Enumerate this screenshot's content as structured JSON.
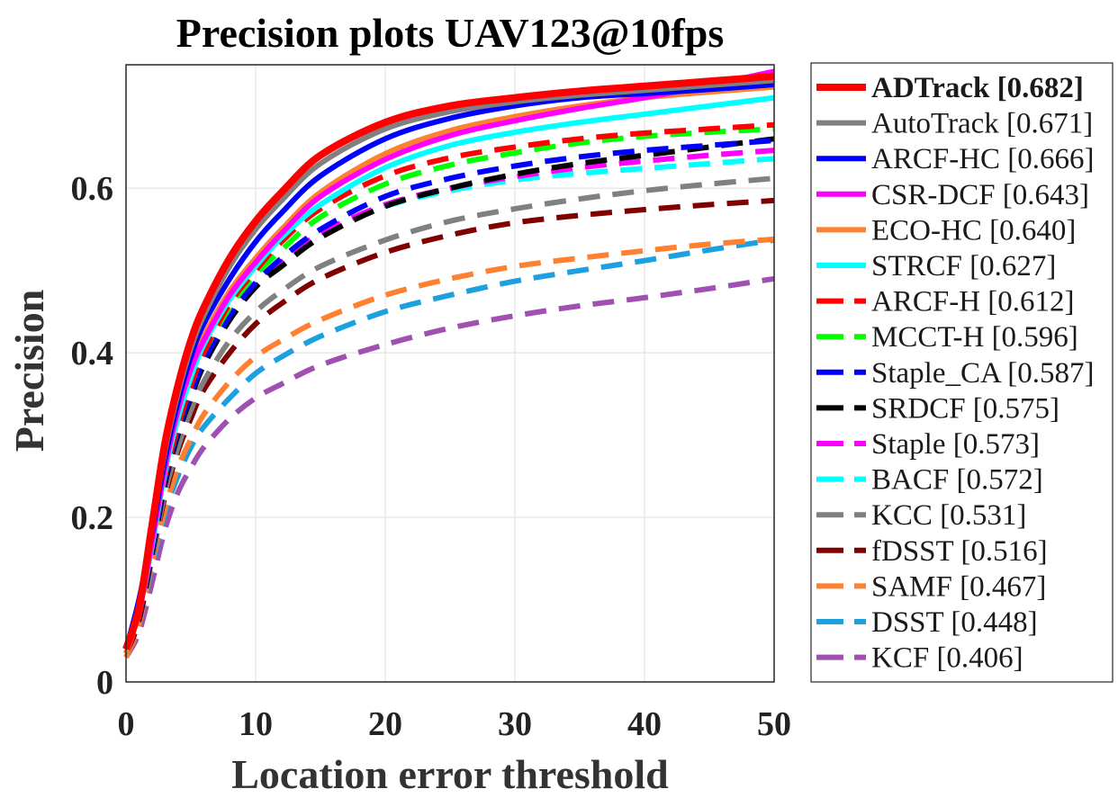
{
  "chart_data": {
    "type": "line",
    "title": "Precision plots UAV123@10fps",
    "xlabel": "Location error threshold",
    "ylabel": "Precision",
    "xlim": [
      0,
      50
    ],
    "ylim": [
      0,
      0.75
    ],
    "xticks": [
      0,
      10,
      20,
      30,
      40,
      50
    ],
    "xtick_labels": [
      "0",
      "10",
      "20",
      "30",
      "40",
      "50"
    ],
    "yticks": [
      0,
      0.2,
      0.4,
      0.6
    ],
    "ytick_labels": [
      "0",
      "0.2",
      "0.4",
      "0.6"
    ],
    "grid": true,
    "legend_position": "outside-right",
    "x": [
      0,
      1,
      2,
      3,
      4,
      5,
      6,
      8,
      10,
      12,
      15,
      20,
      25,
      30,
      35,
      40,
      45,
      50
    ],
    "series": [
      {
        "name": "ADTrack [0.682]",
        "color": "#ff0000",
        "dash": "solid",
        "bold": true,
        "values": [
          0.04,
          0.09,
          0.19,
          0.29,
          0.36,
          0.415,
          0.455,
          0.515,
          0.56,
          0.595,
          0.64,
          0.68,
          0.7,
          0.71,
          0.718,
          0.724,
          0.73,
          0.736
        ]
      },
      {
        "name": "AutoTrack [0.671]",
        "color": "#808080",
        "dash": "solid",
        "values": [
          0.04,
          0.09,
          0.185,
          0.28,
          0.35,
          0.405,
          0.445,
          0.505,
          0.55,
          0.585,
          0.63,
          0.672,
          0.693,
          0.705,
          0.713,
          0.719,
          0.725,
          0.731
        ]
      },
      {
        "name": "ARCF-HC [0.666]",
        "color": "#0000ff",
        "dash": "solid",
        "values": [
          0.04,
          0.1,
          0.18,
          0.27,
          0.34,
          0.395,
          0.435,
          0.49,
          0.535,
          0.57,
          0.615,
          0.66,
          0.685,
          0.7,
          0.71,
          0.715,
          0.72,
          0.726
        ]
      },
      {
        "name": "CSR-DCF [0.643]",
        "color": "#ff00ff",
        "dash": "solid",
        "values": [
          0.04,
          0.085,
          0.17,
          0.26,
          0.33,
          0.38,
          0.415,
          0.47,
          0.51,
          0.545,
          0.59,
          0.635,
          0.664,
          0.682,
          0.697,
          0.71,
          0.725,
          0.742
        ]
      },
      {
        "name": "ECO-HC [0.640]",
        "color": "#ff8030",
        "dash": "solid",
        "values": [
          0.035,
          0.085,
          0.17,
          0.26,
          0.33,
          0.38,
          0.42,
          0.475,
          0.515,
          0.55,
          0.595,
          0.642,
          0.67,
          0.687,
          0.7,
          0.71,
          0.717,
          0.723
        ]
      },
      {
        "name": "STRCF [0.627]",
        "color": "#00ffff",
        "dash": "solid",
        "values": [
          0.035,
          0.085,
          0.165,
          0.255,
          0.32,
          0.37,
          0.41,
          0.465,
          0.505,
          0.54,
          0.58,
          0.625,
          0.652,
          0.668,
          0.68,
          0.69,
          0.7,
          0.71
        ]
      },
      {
        "name": "ARCF-H [0.612]",
        "color": "#ff0000",
        "dash": "dashed",
        "values": [
          0.035,
          0.08,
          0.165,
          0.25,
          0.31,
          0.36,
          0.4,
          0.46,
          0.5,
          0.535,
          0.575,
          0.615,
          0.637,
          0.65,
          0.66,
          0.667,
          0.672,
          0.677
        ]
      },
      {
        "name": "MCCT-H [0.596]",
        "color": "#00ff00",
        "dash": "dashed",
        "values": [
          0.035,
          0.08,
          0.165,
          0.25,
          0.31,
          0.36,
          0.4,
          0.455,
          0.495,
          0.525,
          0.565,
          0.605,
          0.628,
          0.643,
          0.655,
          0.663,
          0.668,
          0.672
        ]
      },
      {
        "name": "Staple_CA [0.587]",
        "color": "#0000ff",
        "dash": "dashed",
        "values": [
          0.035,
          0.08,
          0.16,
          0.245,
          0.305,
          0.35,
          0.39,
          0.445,
          0.485,
          0.515,
          0.55,
          0.59,
          0.612,
          0.627,
          0.638,
          0.646,
          0.652,
          0.658
        ]
      },
      {
        "name": "SRDCF [0.575]",
        "color": "#000000",
        "dash": "dashed",
        "values": [
          0.035,
          0.075,
          0.155,
          0.24,
          0.3,
          0.345,
          0.385,
          0.44,
          0.48,
          0.505,
          0.54,
          0.578,
          0.6,
          0.617,
          0.63,
          0.64,
          0.65,
          0.66
        ]
      },
      {
        "name": "Staple [0.573]",
        "color": "#ff00ff",
        "dash": "dashed",
        "values": [
          0.035,
          0.075,
          0.155,
          0.24,
          0.3,
          0.345,
          0.385,
          0.44,
          0.48,
          0.51,
          0.545,
          0.58,
          0.6,
          0.614,
          0.625,
          0.633,
          0.64,
          0.646
        ]
      },
      {
        "name": "BACF [0.572]",
        "color": "#00ffff",
        "dash": "dashed",
        "values": [
          0.035,
          0.075,
          0.155,
          0.24,
          0.3,
          0.345,
          0.385,
          0.44,
          0.48,
          0.51,
          0.545,
          0.578,
          0.597,
          0.61,
          0.618,
          0.624,
          0.63,
          0.636
        ]
      },
      {
        "name": "KCC [0.531]",
        "color": "#808080",
        "dash": "dashed",
        "values": [
          0.035,
          0.075,
          0.15,
          0.23,
          0.285,
          0.33,
          0.365,
          0.415,
          0.45,
          0.475,
          0.505,
          0.537,
          0.56,
          0.575,
          0.587,
          0.597,
          0.605,
          0.612
        ]
      },
      {
        "name": "fDSST [0.516]",
        "color": "#800000",
        "dash": "dashed",
        "values": [
          0.035,
          0.075,
          0.15,
          0.225,
          0.28,
          0.32,
          0.355,
          0.4,
          0.435,
          0.46,
          0.49,
          0.522,
          0.543,
          0.558,
          0.567,
          0.574,
          0.58,
          0.585
        ]
      },
      {
        "name": "SAMF [0.467]",
        "color": "#ff8030",
        "dash": "dashed",
        "values": [
          0.03,
          0.07,
          0.145,
          0.21,
          0.26,
          0.295,
          0.325,
          0.365,
          0.395,
          0.415,
          0.44,
          0.47,
          0.49,
          0.505,
          0.515,
          0.524,
          0.532,
          0.538
        ]
      },
      {
        "name": "DSST [0.448]",
        "color": "#1ca0e0",
        "dash": "dashed",
        "values": [
          0.03,
          0.07,
          0.14,
          0.205,
          0.25,
          0.285,
          0.31,
          0.345,
          0.375,
          0.395,
          0.42,
          0.45,
          0.47,
          0.487,
          0.5,
          0.512,
          0.525,
          0.537
        ]
      },
      {
        "name": "KCF [0.406]",
        "color": "#a050b0",
        "dash": "dashed",
        "values": [
          0.03,
          0.06,
          0.12,
          0.185,
          0.23,
          0.26,
          0.285,
          0.32,
          0.345,
          0.362,
          0.385,
          0.41,
          0.43,
          0.445,
          0.457,
          0.467,
          0.478,
          0.49
        ]
      }
    ]
  }
}
